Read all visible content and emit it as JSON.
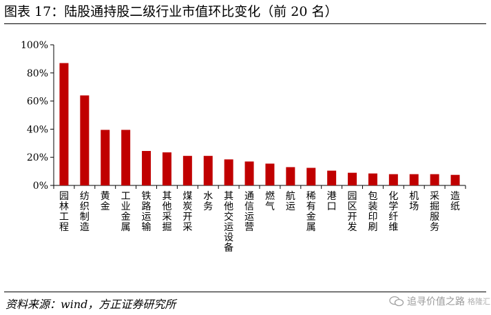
{
  "header": {
    "title": "图表 17：陆股通持股二级行业市值环比变化（前 20 名）"
  },
  "footer": {
    "source": "资料来源：wind，方正证券研究所"
  },
  "watermark": {
    "text": "追寻价值之路",
    "sub": "格隆汇"
  },
  "colors": {
    "bar": "#c00000",
    "axis": "#000000"
  },
  "chart_data": {
    "type": "bar",
    "title": "图表 17：陆股通持股二级行业市值环比变化（前 20 名）",
    "xlabel": "",
    "ylabel": "",
    "categories": [
      "园林工程",
      "纺织制造",
      "黄金",
      "工业金属",
      "铁路运输",
      "其他采掘",
      "煤炭开采",
      "水务",
      "其他交运设备",
      "通信运营",
      "燃气",
      "航运",
      "稀有金属",
      "港口",
      "园区开发",
      "包装印刷",
      "化学纤维",
      "机场",
      "采掘服务",
      "造纸"
    ],
    "values": [
      87,
      64,
      39.5,
      39.5,
      24.5,
      23.5,
      21,
      21,
      18.5,
      17,
      15.5,
      13,
      12.5,
      10.5,
      9,
      8.5,
      8,
      8,
      8,
      7.5
    ],
    "ylim": [
      0,
      100
    ],
    "yticks": [
      0,
      20,
      40,
      60,
      80,
      100
    ],
    "ytick_labels": [
      "0%",
      "20%",
      "40%",
      "60%",
      "80%",
      "100%"
    ],
    "grid": false,
    "legend": "none"
  }
}
